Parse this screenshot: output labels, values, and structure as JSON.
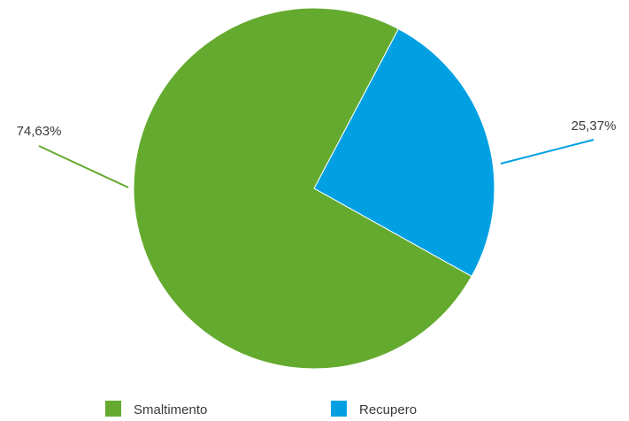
{
  "chart_data": {
    "type": "pie",
    "title": "",
    "categories": [
      "Smaltimento",
      "Recupero"
    ],
    "values": [
      74.63,
      25.37
    ],
    "labels": [
      "74,63%",
      "25,37%"
    ],
    "colors": [
      "#64aa2f",
      "#00a0e3"
    ],
    "legend_position": "bottom",
    "start_angle_deg": 0
  }
}
